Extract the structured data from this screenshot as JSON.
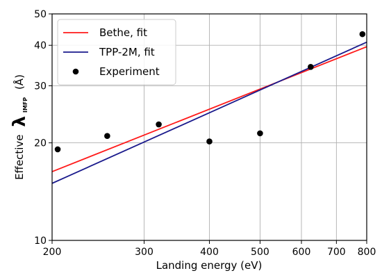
{
  "chart_data": {
    "type": "line",
    "xscale": "log",
    "yscale": "log",
    "xlim": [
      200,
      800
    ],
    "ylim": [
      10,
      50
    ],
    "grid": true,
    "legend_position": "top-left",
    "xlabel": "Landing energy (eV)",
    "ylabel_prefix": "Effective",
    "ylabel_symbol": "λ",
    "ylabel_subscript": "IMFP",
    "ylabel_unit": "(Å)",
    "xticks": [
      {
        "value": 200,
        "label": "200"
      },
      {
        "value": 300,
        "label": "300"
      },
      {
        "value": 400,
        "label": "400"
      },
      {
        "value": 500,
        "label": "500"
      },
      {
        "value": 600,
        "label": "600"
      },
      {
        "value": 700,
        "label": "700"
      },
      {
        "value": 800,
        "label": "800"
      }
    ],
    "yticks": [
      {
        "value": 10,
        "label": "10"
      },
      {
        "value": 20,
        "label": "20"
      },
      {
        "value": 30,
        "label": "30"
      },
      {
        "value": 40,
        "label": "40"
      },
      {
        "value": 50,
        "label": "50"
      }
    ],
    "series": [
      {
        "name": "Bethe, fit",
        "kind": "line",
        "color": "#ff1a1a",
        "x": [
          200,
          800
        ],
        "y": [
          16.3,
          39.6
        ]
      },
      {
        "name": "TPP-2M, fit",
        "kind": "line",
        "color": "#1a1a8c",
        "x": [
          200,
          800
        ],
        "y": [
          15.0,
          40.9
        ]
      },
      {
        "name": "Experiment",
        "kind": "scatter",
        "color": "#000000",
        "x": [
          205,
          255,
          320,
          400,
          500,
          625,
          785
        ],
        "y": [
          19.1,
          21.0,
          22.8,
          20.2,
          21.4,
          34.3,
          43.3
        ]
      }
    ]
  }
}
